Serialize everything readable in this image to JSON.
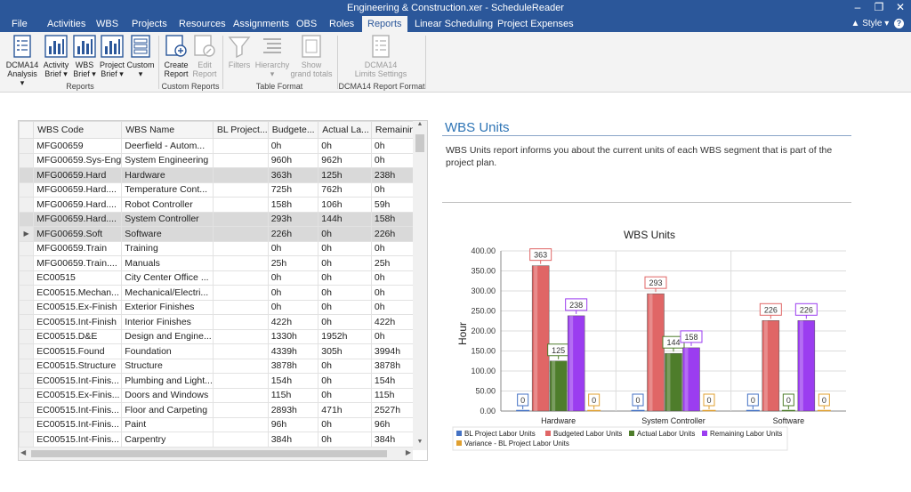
{
  "window": {
    "title": "Engineering & Construction.xer - ScheduleReader"
  },
  "menu": {
    "items": [
      "File",
      "Activities",
      "WBS",
      "Projects",
      "Resources",
      "Assignments",
      "OBS",
      "Roles",
      "Reports",
      "Linear Scheduling",
      "Project Expenses"
    ],
    "active": "Reports",
    "style_label": "Style"
  },
  "ribbon": {
    "buttons": [
      {
        "label1": "DCMA14",
        "label2": "Analysis ▾",
        "enabled": true,
        "icon": "checklist-icon"
      },
      {
        "label1": "Activity",
        "label2": "Brief ▾",
        "enabled": true,
        "icon": "bar-chart-icon"
      },
      {
        "label1": "WBS",
        "label2": "Brief ▾",
        "enabled": true,
        "icon": "bar-chart-icon"
      },
      {
        "label1": "Project",
        "label2": "Brief ▾",
        "enabled": true,
        "icon": "bar-chart-icon"
      },
      {
        "label1": "Custom",
        "label2": "▾",
        "enabled": true,
        "icon": "document-list-icon"
      },
      {
        "label1": "Create",
        "label2": "Report",
        "enabled": true,
        "icon": "create-report-icon"
      },
      {
        "label1": "Edit",
        "label2": "Report",
        "enabled": false,
        "icon": "edit-report-icon"
      },
      {
        "label1": "Filters",
        "label2": "",
        "enabled": false,
        "icon": "filter-icon"
      },
      {
        "label1": "Hierarchy",
        "label2": "▾",
        "enabled": false,
        "icon": "hierarchy-icon"
      },
      {
        "label1": "Show",
        "label2": "grand totals",
        "enabled": false,
        "icon": "grand-totals-icon"
      },
      {
        "label1": "DCMA14",
        "label2": "Limits Settings",
        "enabled": false,
        "icon": "checklist-icon"
      }
    ],
    "groups": [
      "Reports",
      "Custom Reports",
      "Table Format",
      "DCMA14 Report Format"
    ]
  },
  "table": {
    "columns": [
      "WBS Code",
      "WBS Name",
      "BL Project...",
      "Budgete...",
      "Actual La...",
      "Remainin..."
    ],
    "rows": [
      [
        "MFG00659",
        "Deerfield - Autom...",
        "",
        "0h",
        "0h",
        "0h"
      ],
      [
        "MFG00659.Sys-Eng",
        "System Engineering",
        "",
        "960h",
        "962h",
        "0h"
      ],
      [
        "MFG00659.Hard",
        "Hardware",
        "",
        "363h",
        "125h",
        "238h"
      ],
      [
        "MFG00659.Hard....",
        "Temperature Cont...",
        "",
        "725h",
        "762h",
        "0h"
      ],
      [
        "MFG00659.Hard....",
        "Robot Controller",
        "",
        "158h",
        "106h",
        "59h"
      ],
      [
        "MFG00659.Hard....",
        "System Controller",
        "",
        "293h",
        "144h",
        "158h"
      ],
      [
        "MFG00659.Soft",
        "Software",
        "",
        "226h",
        "0h",
        "226h"
      ],
      [
        "MFG00659.Train",
        "Training",
        "",
        "0h",
        "0h",
        "0h"
      ],
      [
        "MFG00659.Train....",
        "Manuals",
        "",
        "25h",
        "0h",
        "25h"
      ],
      [
        "EC00515",
        "City Center Office ...",
        "",
        "0h",
        "0h",
        "0h"
      ],
      [
        "EC00515.Mechan...",
        "Mechanical/Electri...",
        "",
        "0h",
        "0h",
        "0h"
      ],
      [
        "EC00515.Ex-Finish",
        "Exterior Finishes",
        "",
        "0h",
        "0h",
        "0h"
      ],
      [
        "EC00515.Int-Finish",
        "Interior Finishes",
        "",
        "422h",
        "0h",
        "422h"
      ],
      [
        "EC00515.D&E",
        "Design and Engine...",
        "",
        "1330h",
        "1952h",
        "0h"
      ],
      [
        "EC00515.Found",
        "Foundation",
        "",
        "4339h",
        "305h",
        "3994h"
      ],
      [
        "EC00515.Structure",
        "Structure",
        "",
        "3878h",
        "0h",
        "3878h"
      ],
      [
        "EC00515.Int-Finis...",
        "Plumbing and Light...",
        "",
        "154h",
        "0h",
        "154h"
      ],
      [
        "EC00515.Ex-Finis...",
        "Doors and Windows",
        "",
        "115h",
        "0h",
        "115h"
      ],
      [
        "EC00515.Int-Finis...",
        "Floor and Carpeting",
        "",
        "2893h",
        "471h",
        "2527h"
      ],
      [
        "EC00515.Int-Finis...",
        "Paint",
        "",
        "96h",
        "0h",
        "96h"
      ],
      [
        "EC00515.Int-Finis...",
        "Carpentry",
        "",
        "384h",
        "0h",
        "384h"
      ]
    ],
    "selected_rows": [
      2,
      5,
      6
    ],
    "current_row": 6
  },
  "report": {
    "title": "WBS Units",
    "description": "WBS Units report informs you about the current units of each WBS segment that is part of the project plan."
  },
  "chart_data": {
    "type": "bar",
    "title": "WBS Units",
    "ylabel": "Hour",
    "xlabel": "",
    "ylim": [
      0,
      400
    ],
    "yticks": [
      "0.00",
      "50.00",
      "100.00",
      "150.00",
      "200.00",
      "250.00",
      "300.00",
      "350.00",
      "400.00"
    ],
    "categories": [
      "Hardware",
      "System Controller",
      "Software"
    ],
    "series": [
      {
        "name": "BL Project Labor Units",
        "color": "#4472c4",
        "values": [
          0,
          0,
          0
        ]
      },
      {
        "name": "Budgeted Labor Units",
        "color": "#e06666",
        "values": [
          363,
          293,
          226
        ]
      },
      {
        "name": "Actual Labor Units",
        "color": "#4e7d2b",
        "values": [
          125,
          144,
          0
        ]
      },
      {
        "name": "Remaining Labor Units",
        "color": "#9b3df0",
        "values": [
          238,
          158,
          226
        ]
      },
      {
        "name": "Variance - BL Project Labor Units",
        "color": "#e0a030",
        "values": [
          0,
          0,
          0
        ]
      }
    ],
    "legend_position": "bottom",
    "grid": true
  }
}
